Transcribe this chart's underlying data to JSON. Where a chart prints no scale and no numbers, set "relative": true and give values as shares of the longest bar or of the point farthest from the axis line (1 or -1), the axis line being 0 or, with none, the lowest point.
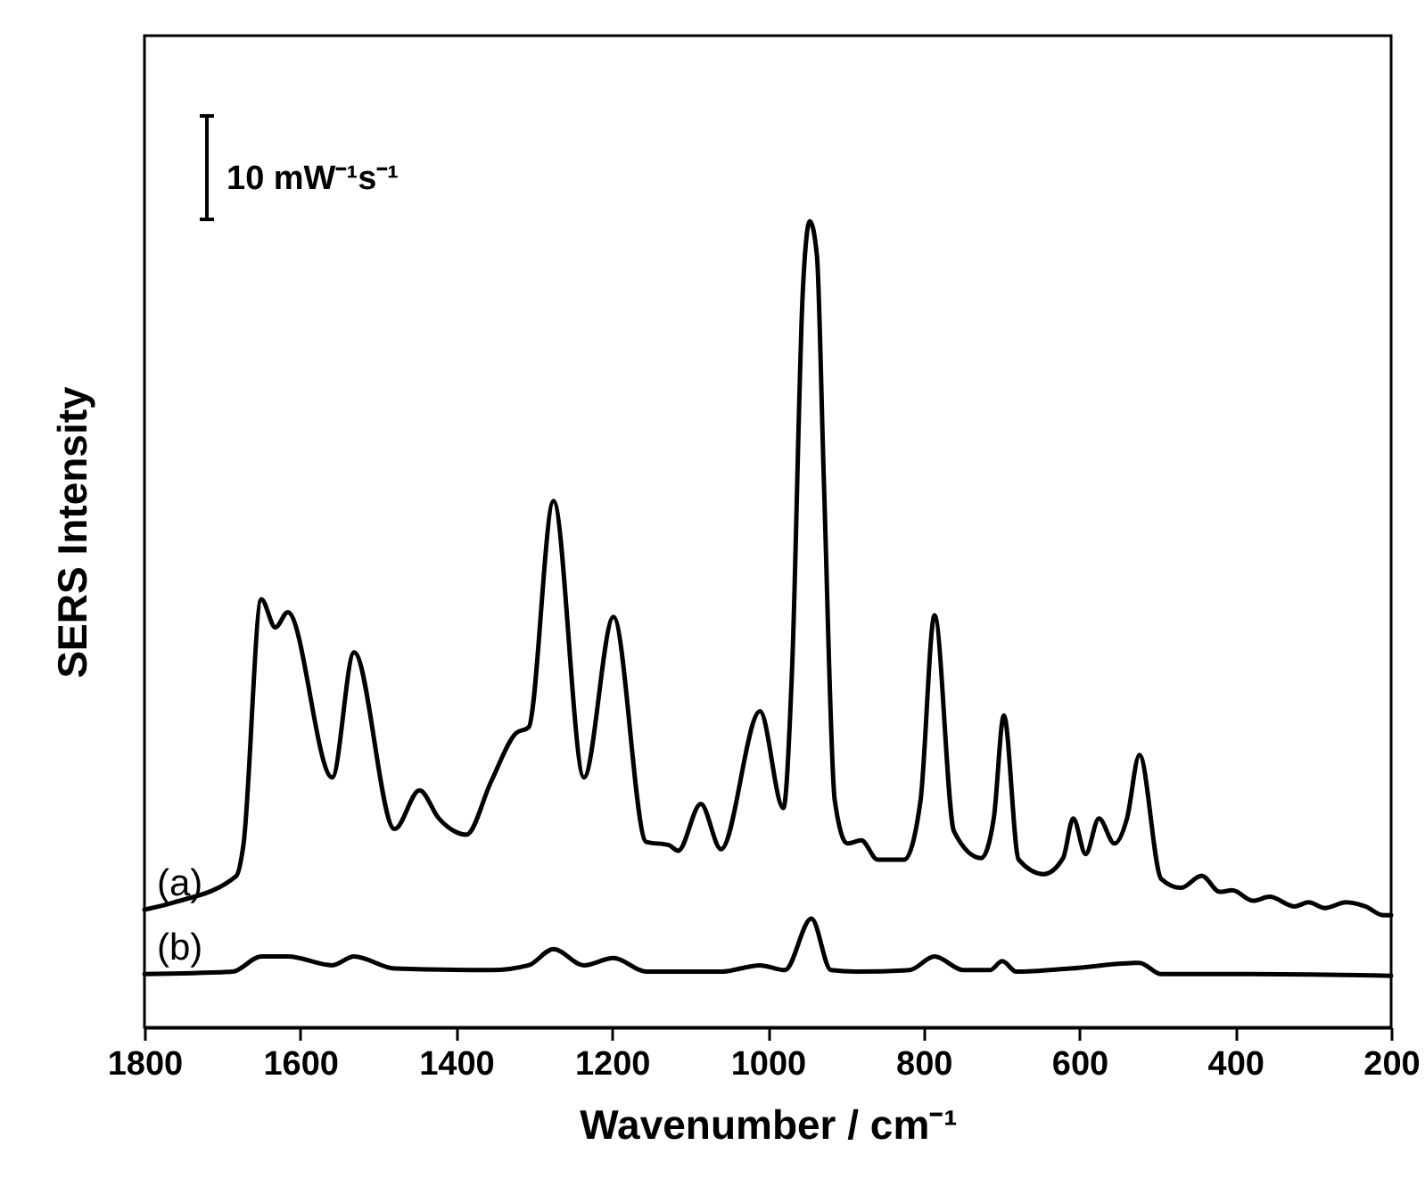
{
  "chart_data": {
    "type": "line",
    "relative": true,
    "xlabel": "Wavenumber / cm⁻¹",
    "ylabel": "SERS Intensity",
    "xlim": [
      1800,
      200
    ],
    "xticks": [
      1800,
      1600,
      1400,
      1200,
      1000,
      800,
      600,
      400,
      200
    ],
    "annotations": [
      "10 mW⁻¹s⁻¹"
    ],
    "series": [
      {
        "name": "(a)",
        "color": "#000000",
        "x": [
          1800,
          1762,
          1682,
          1673,
          1650,
          1632,
          1616,
          1559,
          1531,
          1479,
          1447,
          1422,
          1387,
          1355,
          1323,
          1307,
          1275,
          1236,
          1198,
          1156,
          1127,
          1115,
          1086,
          1060,
          1010,
          980,
          969,
          955,
          946,
          937,
          928,
          914,
          898,
          880,
          859,
          825,
          804,
          786,
          761,
          726,
          710,
          697,
          678,
          646,
          621,
          608,
          592,
          575,
          555,
          539,
          523,
          495,
          470,
          443,
          420,
          404,
          377,
          356,
          324,
          306,
          285,
          258,
          233,
          210,
          200
        ],
        "values": [
          0.146,
          0.155,
          0.188,
          0.226,
          0.531,
          0.496,
          0.515,
          0.31,
          0.465,
          0.246,
          0.294,
          0.259,
          0.239,
          0.305,
          0.365,
          0.372,
          0.653,
          0.31,
          0.509,
          0.23,
          0.226,
          0.219,
          0.277,
          0.221,
          0.392,
          0.272,
          0.44,
          0.914,
          1.0,
          0.958,
          0.677,
          0.281,
          0.228,
          0.232,
          0.208,
          0.208,
          0.281,
          0.511,
          0.243,
          0.21,
          0.259,
          0.387,
          0.208,
          0.19,
          0.21,
          0.259,
          0.215,
          0.259,
          0.228,
          0.259,
          0.338,
          0.184,
          0.173,
          0.188,
          0.168,
          0.17,
          0.157,
          0.162,
          0.15,
          0.155,
          0.148,
          0.155,
          0.15,
          0.139,
          0.139
        ]
      },
      {
        "name": "(b)",
        "color": "#000000",
        "x": [
          1800,
          1687,
          1650,
          1616,
          1559,
          1531,
          1479,
          1355,
          1307,
          1275,
          1236,
          1198,
          1156,
          1060,
          1010,
          978,
          944,
          919,
          887,
          818,
          786,
          749,
          715,
          699,
          681,
          612,
          523,
          495,
          383,
          200
        ],
        "values": [
          0.066,
          0.069,
          0.088,
          0.088,
          0.077,
          0.088,
          0.073,
          0.071,
          0.077,
          0.097,
          0.077,
          0.086,
          0.069,
          0.069,
          0.077,
          0.071,
          0.135,
          0.071,
          0.069,
          0.071,
          0.088,
          0.071,
          0.071,
          0.082,
          0.069,
          0.073,
          0.08,
          0.066,
          0.066,
          0.064
        ]
      }
    ]
  }
}
